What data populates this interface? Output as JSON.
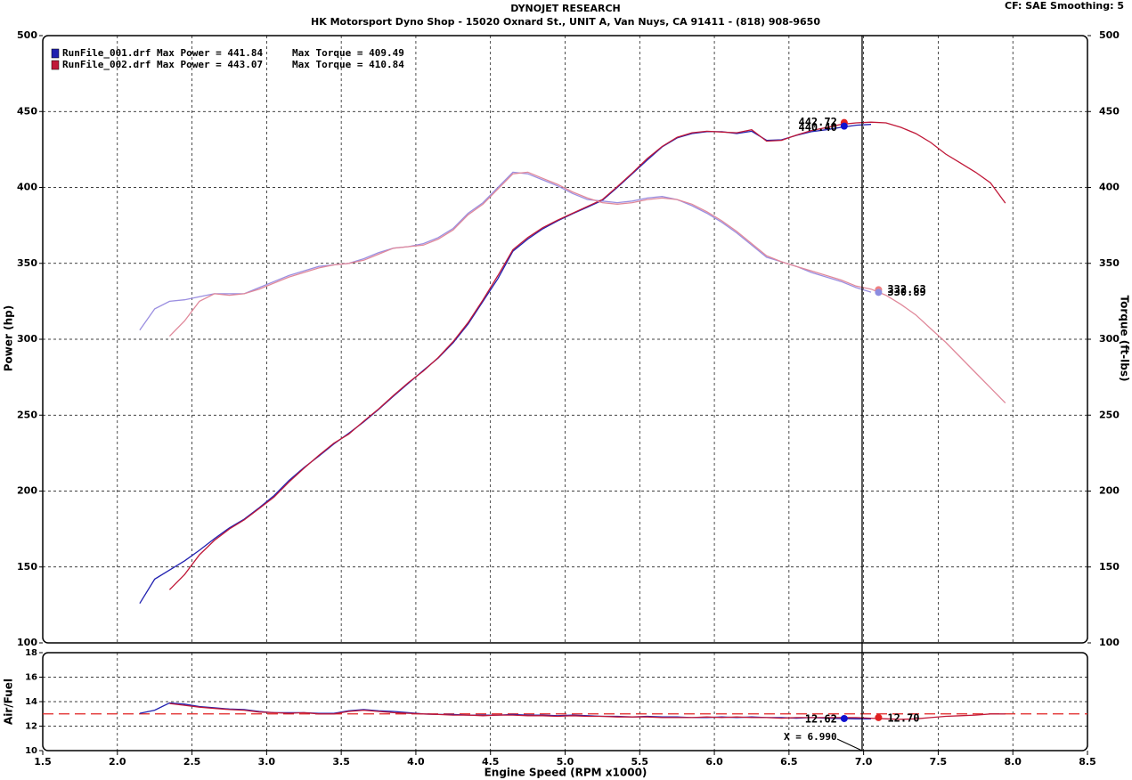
{
  "header": {
    "title": "DYNOJET RESEARCH",
    "subtitle": "HK Motorsport Dyno Shop - 15020 Oxnard St., UNIT A, Van Nuys, CA 91411 - (818) 908-9650",
    "settings": "CF: SAE  Smoothing: 5"
  },
  "chart_data": [
    {
      "type": "line",
      "ylabel": "Power (hp)",
      "y2label": "Torque (ft-lbs)",
      "x": [
        2.15,
        2.25,
        2.35,
        2.45,
        2.55,
        2.65,
        2.75,
        2.85,
        2.95,
        3.05,
        3.15,
        3.25,
        3.35,
        3.45,
        3.55,
        3.65,
        3.75,
        3.85,
        3.95,
        4.05,
        4.15,
        4.25,
        4.35,
        4.45,
        4.55,
        4.65,
        4.75,
        4.85,
        4.95,
        5.05,
        5.15,
        5.25,
        5.35,
        5.45,
        5.55,
        5.65,
        5.75,
        5.85,
        5.95,
        6.05,
        6.15,
        6.25,
        6.35,
        6.45,
        6.55,
        6.65,
        6.75,
        6.85,
        6.95,
        7.05,
        7.15,
        7.25,
        7.35,
        7.45,
        7.55,
        7.65,
        7.75,
        7.85,
        7.95
      ],
      "xlim": [
        1.5,
        8.5
      ],
      "ylim": [
        100,
        500
      ],
      "yticks": [
        100,
        150,
        200,
        250,
        300,
        350,
        400,
        450,
        500
      ],
      "y2lim": [
        100,
        500
      ],
      "y2ticks": [
        100,
        150,
        200,
        250,
        300,
        350,
        400,
        450,
        500
      ],
      "grid": true,
      "series": [
        {
          "name": "RunFile_001.drf Max Power = 441.84",
          "color": "#2020b0",
          "values": [
            126,
            142,
            148,
            154,
            161,
            168.6,
            175.7,
            181.5,
            189,
            197,
            207,
            215.5,
            223,
            231,
            238,
            245.5,
            253.7,
            262.5,
            271,
            279.5,
            287.7,
            297.7,
            310,
            325,
            340,
            358,
            366,
            372.7,
            378,
            382.7,
            387,
            391.5,
            400,
            409,
            418,
            426.7,
            432.6,
            435.5,
            436.7,
            436.7,
            435.5,
            437,
            431,
            431.4,
            434.3,
            436.7,
            438,
            439.6,
            441,
            441.5,
            null,
            null,
            null,
            null,
            null,
            null,
            null,
            null,
            null
          ]
        },
        {
          "name": "Max Torque = 409.49",
          "axis": "y2",
          "color": "#9a8ee0",
          "values": [
            306,
            320,
            325,
            326,
            328,
            330,
            330,
            330,
            334,
            338,
            342,
            345,
            348,
            349,
            350,
            353,
            357,
            360,
            361,
            363,
            367,
            373,
            383,
            390,
            400,
            410,
            409,
            405,
            401,
            396,
            392,
            391,
            390,
            391,
            393,
            394,
            392,
            388,
            383,
            377,
            370,
            362,
            354,
            351,
            348,
            344,
            341,
            338,
            334,
            331,
            null,
            null,
            null,
            null,
            null,
            null,
            null,
            null,
            null
          ]
        },
        {
          "name": "RunFile_002.drf Max Power = 443.07",
          "color": "#c01838",
          "values": [
            null,
            null,
            135,
            145,
            158,
            167.5,
            175,
            181,
            188.5,
            196,
            206,
            215,
            223.5,
            231.5,
            237.5,
            246,
            254,
            263,
            271.5,
            279,
            288,
            298.5,
            311,
            326,
            342,
            359,
            367,
            373.5,
            378.5,
            383,
            387.5,
            392,
            400.5,
            409.5,
            419,
            427,
            433,
            436,
            437,
            436.5,
            436,
            438,
            430.5,
            431,
            434.5,
            437.5,
            439.5,
            441.5,
            442.5,
            443,
            442.5,
            439.6,
            435.5,
            429.6,
            422,
            416,
            410,
            403,
            389.7
          ]
        },
        {
          "name": "Max Torque = 410.84",
          "axis": "y2",
          "color": "#e0889a",
          "values": [
            null,
            null,
            302,
            312,
            325,
            330,
            329,
            330,
            333,
            337,
            341,
            344,
            347,
            349,
            350,
            352,
            356,
            360,
            361,
            362,
            366,
            372,
            382,
            389,
            399,
            409,
            410,
            406,
            402,
            397,
            393,
            390,
            389,
            390,
            392,
            393,
            392,
            389,
            384,
            378,
            371,
            363,
            355,
            351,
            348,
            345,
            342,
            339,
            335,
            333,
            329,
            323,
            316,
            307,
            298,
            288,
            278,
            268,
            258
          ]
        }
      ],
      "markers": {
        "x": [
          6.87,
          6.87,
          7.1,
          7.1
        ],
        "values": [
          442.72,
          440.4,
          332.63,
          330.89
        ],
        "value_labels": [
          "442.72",
          "440.40",
          "332.63",
          "330.89"
        ],
        "colors": [
          "#e02020",
          "#1010d0",
          "#f08080",
          "#8c8ce0"
        ]
      },
      "cursor_x": 6.99
    },
    {
      "type": "line",
      "ylabel": "Air/Fuel",
      "xlabel": "Engine Speed (RPM x1000)",
      "x": [
        2.15,
        2.25,
        2.35,
        2.45,
        2.55,
        2.65,
        2.75,
        2.85,
        2.95,
        3.05,
        3.15,
        3.25,
        3.35,
        3.45,
        3.55,
        3.65,
        3.75,
        3.85,
        3.95,
        4.05,
        4.15,
        4.25,
        4.35,
        4.45,
        4.55,
        4.65,
        4.75,
        4.85,
        4.95,
        5.05,
        5.15,
        5.25,
        5.35,
        5.45,
        5.55,
        5.65,
        5.75,
        5.85,
        5.95,
        6.05,
        6.15,
        6.25,
        6.35,
        6.45,
        6.55,
        6.65,
        6.75,
        6.85,
        6.95,
        7.05,
        7.15,
        7.25,
        7.35,
        7.45,
        7.55,
        7.65,
        7.75,
        7.85,
        7.95
      ],
      "xlim": [
        1.5,
        8.5
      ],
      "xticks": [
        1.5,
        {
          "value": 2,
          "label": "2.0"
        },
        2.5,
        {
          "value": 3,
          "label": "3.0"
        },
        3.5,
        {
          "value": 4,
          "label": "4.0"
        },
        4.5,
        {
          "value": 5,
          "label": "5.0"
        },
        5.5,
        {
          "value": 6,
          "label": "6.0"
        },
        6.5,
        {
          "value": 7,
          "label": "7.0"
        },
        7.5,
        {
          "value": 8,
          "label": "8.0"
        },
        8.5
      ],
      "ylim": [
        10,
        18
      ],
      "yticks": [
        10,
        12,
        14,
        16,
        18
      ],
      "grid": true,
      "target": 13,
      "target_color": "#e02020",
      "series": [
        {
          "color": "#2020b0",
          "values": [
            13.05,
            13.3,
            13.9,
            13.8,
            13.6,
            13.5,
            13.4,
            13.35,
            13.2,
            13.1,
            13.1,
            13.1,
            13.05,
            13.05,
            13.25,
            13.35,
            13.25,
            13.2,
            13.1,
            13.0,
            12.95,
            12.95,
            12.9,
            12.9,
            12.9,
            12.95,
            12.9,
            12.9,
            12.85,
            12.9,
            12.85,
            12.8,
            12.8,
            12.75,
            12.8,
            12.75,
            12.75,
            12.7,
            12.7,
            12.75,
            12.7,
            12.75,
            12.7,
            12.7,
            12.65,
            12.7,
            12.65,
            12.62,
            12.6,
            12.6,
            null,
            null,
            null,
            null,
            null,
            null,
            null,
            null,
            null
          ]
        },
        {
          "color": "#c01838",
          "values": [
            null,
            null,
            13.85,
            13.7,
            13.55,
            13.45,
            13.35,
            13.3,
            13.15,
            13.1,
            13.05,
            13.1,
            13.0,
            13.0,
            13.2,
            13.3,
            13.2,
            13.1,
            13.05,
            13.0,
            12.95,
            12.9,
            12.9,
            12.85,
            12.9,
            12.9,
            12.85,
            12.85,
            12.8,
            12.85,
            12.8,
            12.8,
            12.75,
            12.75,
            12.75,
            12.7,
            12.7,
            12.7,
            12.75,
            12.7,
            12.75,
            12.7,
            12.7,
            12.65,
            12.7,
            12.7,
            12.7,
            12.7,
            12.7,
            12.65,
            12.6,
            12.55,
            12.6,
            12.7,
            12.8,
            12.85,
            12.9,
            13.0,
            13.0
          ]
        }
      ],
      "markers": {
        "x": [
          6.87,
          7.1
        ],
        "values": [
          12.62,
          12.7
        ],
        "value_labels": [
          "12.62",
          "12.70"
        ],
        "colors": [
          "#1010d0",
          "#e02020"
        ]
      },
      "cursor_x": 6.99,
      "cursor_label": "X = 6.990"
    }
  ]
}
